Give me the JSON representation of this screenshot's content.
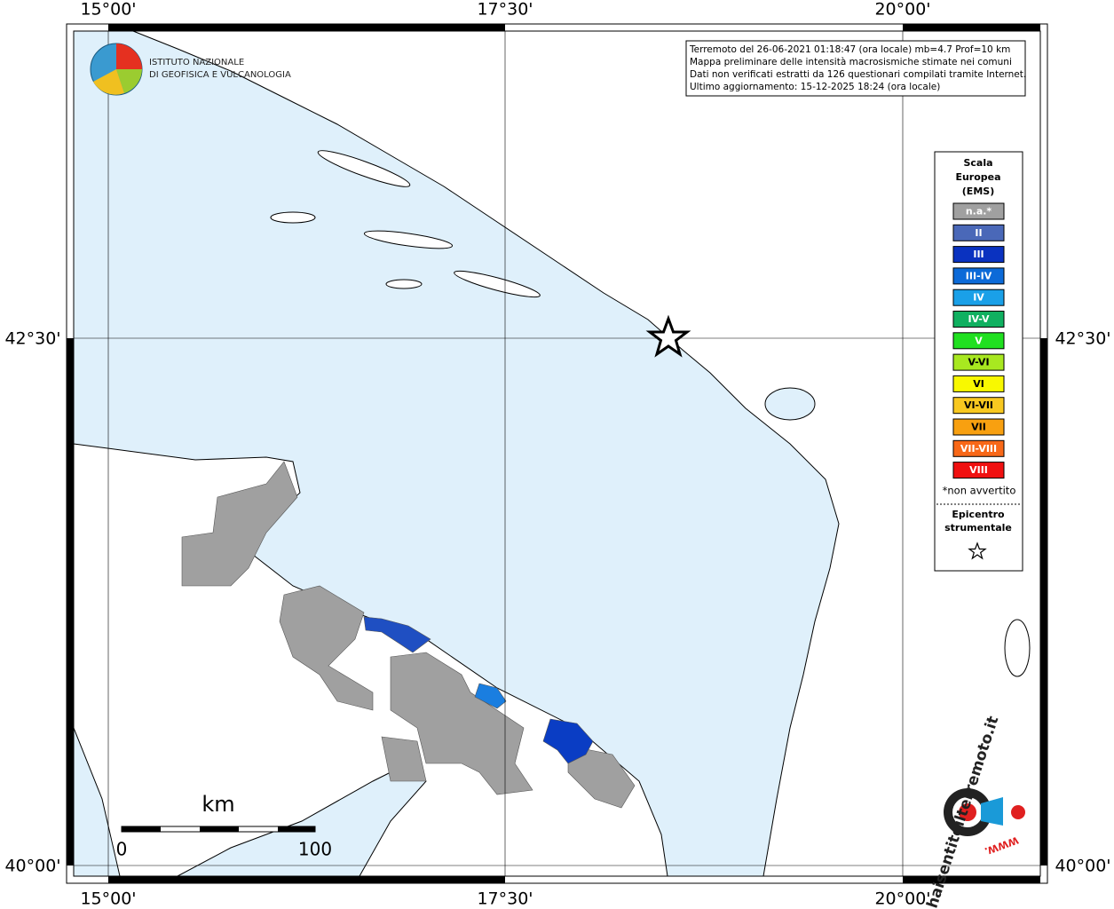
{
  "map": {
    "lon_labels": [
      "15°00'",
      "17°30'",
      "20°00'"
    ],
    "lat_labels": [
      "42°30'",
      "40°00'"
    ],
    "info_lines": [
      "Terremoto del 26-06-2021 01:18:47 (ora locale) mb=4.7 Prof=10 km",
      "Mappa preliminare delle intensità macrosismiche stimate nei comuni",
      "Dati non verificati estratti da 126 questionari compilati tramite Internet.",
      "Ultimo aggiornamento: 15-12-2025 18:24 (ora locale)"
    ],
    "logo_lines": [
      "ISTITUTO NAZIONALE",
      "DI GEOFISICA E VULCANOLOGIA"
    ],
    "legend": {
      "title_lines": [
        "Scala",
        "Europea",
        "(EMS)"
      ],
      "entries": [
        {
          "label": "n.a.*",
          "color": "#a0a0a0"
        },
        {
          "label": "II",
          "color": "#4a68b8"
        },
        {
          "label": "III",
          "color": "#0a32c0"
        },
        {
          "label": "III-IV",
          "color": "#0c6ad8"
        },
        {
          "label": "IV",
          "color": "#1aa0e8"
        },
        {
          "label": "IV-V",
          "color": "#10b060"
        },
        {
          "label": "V",
          "color": "#20e020"
        },
        {
          "label": "V-VI",
          "color": "#a8e820"
        },
        {
          "label": "VI",
          "color": "#f8f800"
        },
        {
          "label": "VI-VII",
          "color": "#f8c820"
        },
        {
          "label": "VII",
          "color": "#f8a010"
        },
        {
          "label": "VII-VIII",
          "color": "#f86818"
        },
        {
          "label": "VIII",
          "color": "#f01010"
        }
      ],
      "note": "*non avvertito",
      "epicenter_lines": [
        "Epicentro",
        "strumentale"
      ]
    },
    "scale_bar": {
      "unit": "km",
      "start": 0,
      "end": 100
    },
    "site_logo": {
      "name": "haisentitoilterremoto.it",
      "prefix": "WWW."
    }
  }
}
